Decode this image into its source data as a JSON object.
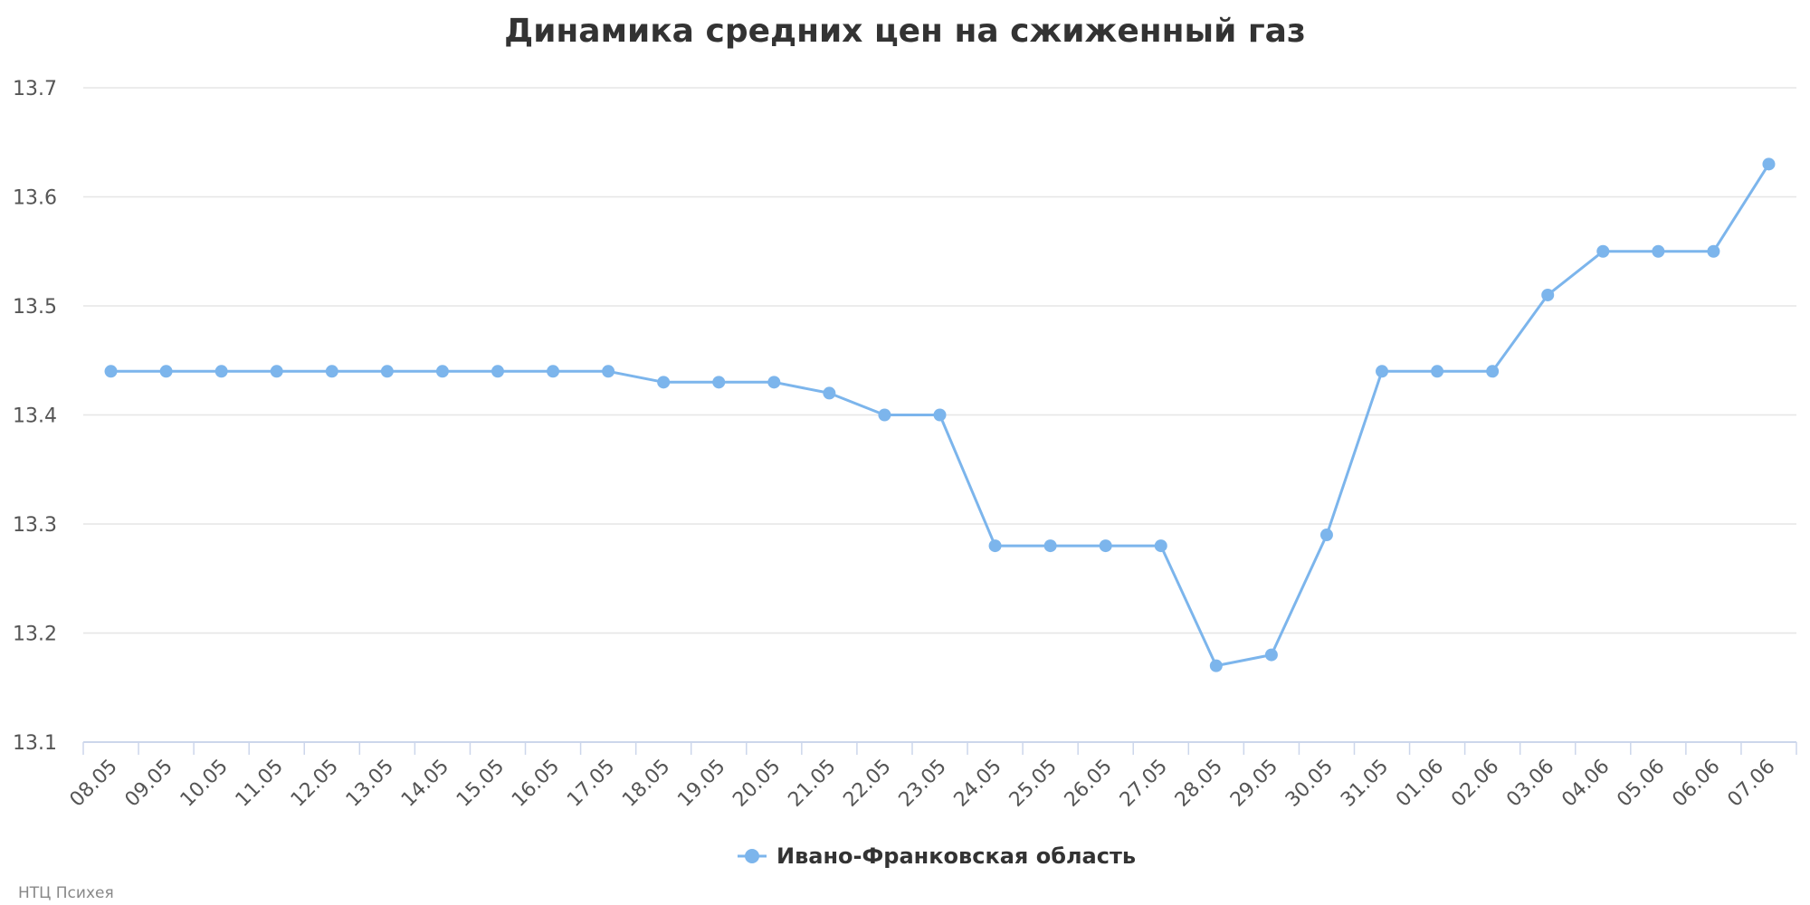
{
  "chart_data": {
    "type": "line",
    "title": "Динамика средних цен на сжиженный газ",
    "xlabel": "",
    "ylabel": "",
    "ylim": [
      13.1,
      13.7
    ],
    "yticks": [
      "13.1",
      "13.2",
      "13.3",
      "13.4",
      "13.5",
      "13.6",
      "13.7"
    ],
    "grid": true,
    "legend_position": "bottom-center",
    "categories": [
      "08.05",
      "09.05",
      "10.05",
      "11.05",
      "12.05",
      "13.05",
      "14.05",
      "15.05",
      "16.05",
      "17.05",
      "18.05",
      "19.05",
      "20.05",
      "21.05",
      "22.05",
      "23.05",
      "24.05",
      "25.05",
      "26.05",
      "27.05",
      "28.05",
      "29.05",
      "30.05",
      "31.05",
      "01.06",
      "02.06",
      "03.06",
      "04.06",
      "05.06",
      "06.06",
      "07.06"
    ],
    "series": [
      {
        "name": "Ивано-Франковская область",
        "color": "#7cb5ec",
        "values": [
          13.44,
          13.44,
          13.44,
          13.44,
          13.44,
          13.44,
          13.44,
          13.44,
          13.44,
          13.44,
          13.43,
          13.43,
          13.43,
          13.42,
          13.4,
          13.4,
          13.28,
          13.28,
          13.28,
          13.28,
          13.17,
          13.18,
          13.29,
          13.44,
          13.44,
          13.44,
          13.51,
          13.55,
          13.55,
          13.55,
          13.63
        ]
      }
    ]
  },
  "credit": "НТЦ Психея",
  "colors": {
    "grid": "#e6e6e6",
    "axis": "#ccd6eb",
    "series": "#7cb5ec"
  }
}
